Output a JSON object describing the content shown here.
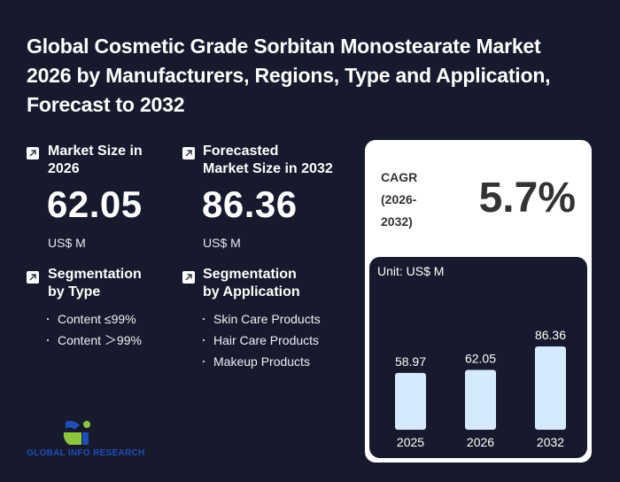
{
  "title": "Global Cosmetic Grade Sorbitan Monostearate Market 2026 by Manufacturers, Regions, Type and Application, Forecast to 2032",
  "market_size": {
    "label": "Market Size in 2026",
    "value": "62.05",
    "unit": "US$ M",
    "icon": "arrow-up-right-icon"
  },
  "forecast": {
    "label_line1": "Forecasted",
    "label_line2": "Market Size in 2032",
    "value": "86.36",
    "unit": "US$ M",
    "icon": "arrow-up-right-icon"
  },
  "segmentation_type": {
    "label_line1": "Segmentation",
    "label_line2": "by Type",
    "items": [
      "Content ≤99%",
      "Content ＞99%"
    ]
  },
  "segmentation_application": {
    "label_line1": "Segmentation",
    "label_line2": "by Application",
    "items": [
      "Skin Care Products",
      "Hair Care Products",
      "Makeup Products"
    ]
  },
  "cagr": {
    "label_line1": "CAGR",
    "label_line2": "(2026-",
    "label_line3": "2032)",
    "value": "5.7%"
  },
  "chart_data": {
    "type": "bar",
    "unit_label": "Unit: US$ M",
    "categories": [
      "2025",
      "2026",
      "2032"
    ],
    "values": [
      58.97,
      62.05,
      86.36
    ],
    "value_labels": [
      "58.97",
      "62.05",
      "86.36"
    ],
    "bar_color": "#d6eafe"
  },
  "logo": {
    "text": "GLOBAL INFO RESEARCH",
    "colors": {
      "blue": "#1e4db7",
      "green": "#8cc63f"
    }
  },
  "colors": {
    "background": "#171a2c",
    "card": "#ffffff",
    "cagr_text": "#333333"
  }
}
